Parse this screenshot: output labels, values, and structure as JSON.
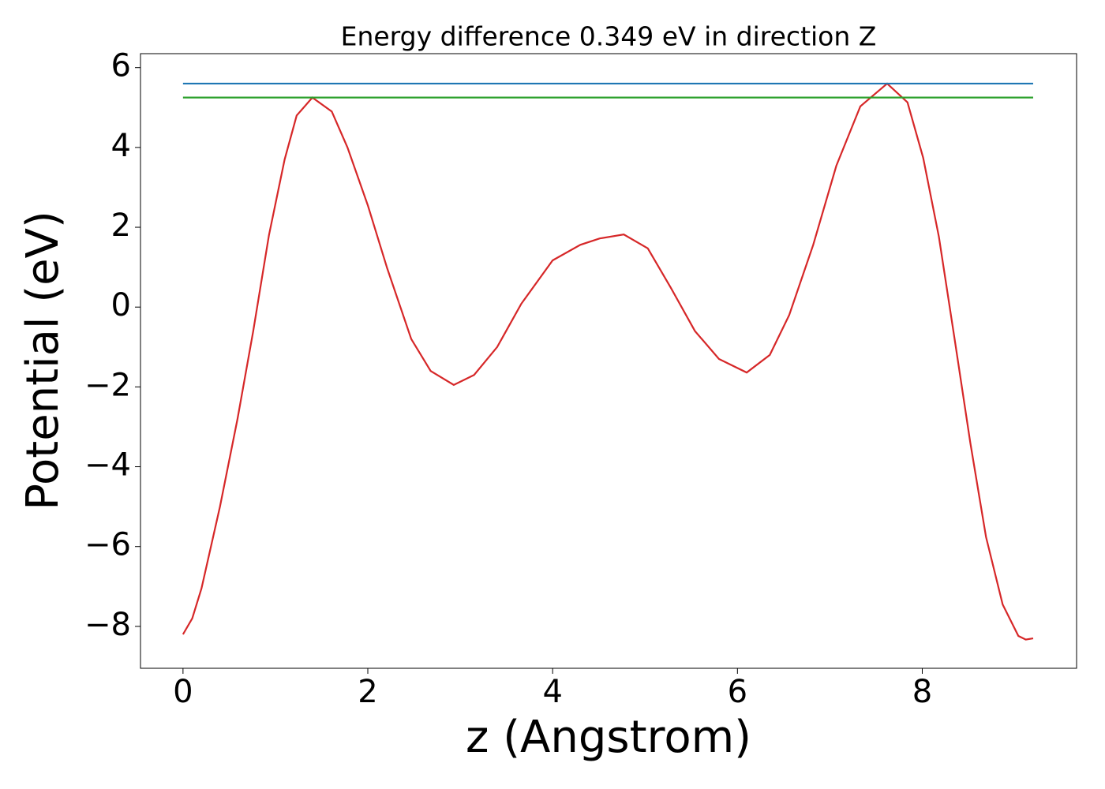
{
  "chart_data": {
    "type": "line",
    "title": "Energy difference 0.349 eV in direction Z",
    "xlabel": "z (Angstrom)",
    "ylabel": "Potential (eV)",
    "xlim": [
      -0.46,
      9.67
    ],
    "ylim": [
      -9.05,
      6.35
    ],
    "xticks": [
      0,
      2,
      4,
      6,
      8
    ],
    "yticks": [
      {
        "value": -8,
        "label": "−8"
      },
      {
        "value": -6,
        "label": "−6"
      },
      {
        "value": -4,
        "label": "−4"
      },
      {
        "value": -2,
        "label": "−2"
      },
      0,
      2,
      4,
      6
    ],
    "grid": false,
    "series": [
      {
        "color": "#d62728",
        "x": [
          0,
          0.1,
          0.2,
          0.4,
          0.59,
          0.76,
          0.93,
          1.1,
          1.23,
          1.4,
          1.61,
          1.78,
          2.0,
          2.21,
          2.47,
          2.68,
          2.93,
          3.15,
          3.4,
          3.66,
          4.0,
          4.3,
          4.51,
          4.77,
          5.03,
          5.28,
          5.54,
          5.8,
          6.1,
          6.35,
          6.56,
          6.82,
          7.07,
          7.33,
          7.62,
          7.84,
          8.01,
          8.18,
          8.35,
          8.52,
          8.69,
          8.87,
          9.04,
          9.12,
          9.2
        ],
        "values": [
          -8.2,
          -7.8,
          -7.05,
          -5.0,
          -2.8,
          -0.6,
          1.8,
          3.7,
          4.8,
          5.25,
          4.9,
          4.0,
          2.55,
          0.97,
          -0.8,
          -1.6,
          -1.95,
          -1.7,
          -1.0,
          0.08,
          1.17,
          1.56,
          1.72,
          1.82,
          1.47,
          0.48,
          -0.6,
          -1.3,
          -1.64,
          -1.2,
          -0.2,
          1.56,
          3.54,
          5.03,
          5.6,
          5.13,
          3.74,
          1.76,
          -0.8,
          -3.4,
          -5.76,
          -7.45,
          -8.24,
          -8.33,
          -8.3
        ]
      },
      {
        "color": "#1f77b4",
        "x": [
          0,
          9.2
        ],
        "values": [
          5.6,
          5.6
        ]
      },
      {
        "color": "#2ca02c",
        "x": [
          0,
          9.2
        ],
        "values": [
          5.25,
          5.25
        ]
      }
    ]
  }
}
